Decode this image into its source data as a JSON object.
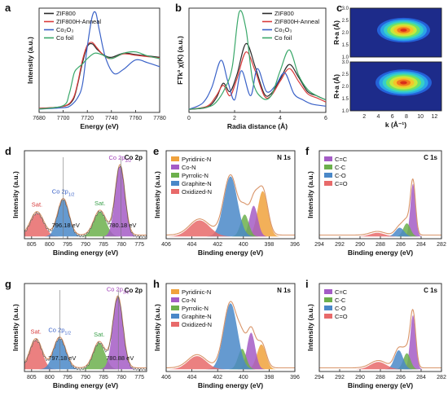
{
  "chart_data": [
    {
      "id": "a",
      "type": "line",
      "letter": "a",
      "xlabel": "Energy (eV)",
      "ylabel": "Intensity (a.u.)",
      "xlim": [
        7680,
        7780
      ],
      "ylim": [
        0,
        1.55
      ],
      "xticks": [
        "7680",
        "7700",
        "7720",
        "7740",
        "7760",
        "7780"
      ],
      "legend_position": "top-left",
      "series": [
        {
          "name": "ZIF800",
          "color": "#2a2a2a",
          "x": [
            7680,
            7700,
            7708,
            7712,
            7716,
            7720,
            7724,
            7728,
            7734,
            7740,
            7750,
            7760,
            7770,
            7780
          ],
          "y": [
            0.06,
            0.09,
            0.18,
            0.42,
            0.74,
            0.98,
            1.02,
            0.94,
            0.85,
            0.82,
            0.88,
            0.86,
            0.84,
            0.82
          ]
        },
        {
          "name": "ZIF800H-Anneal",
          "color": "#d83a3a",
          "x": [
            7680,
            7700,
            7708,
            7712,
            7716,
            7720,
            7724,
            7728,
            7734,
            7740,
            7750,
            7760,
            7770,
            7780
          ],
          "y": [
            0.06,
            0.09,
            0.2,
            0.44,
            0.78,
            1.0,
            1.04,
            0.96,
            0.84,
            0.8,
            0.87,
            0.85,
            0.83,
            0.81
          ]
        },
        {
          "name": "Co₂O₃",
          "color": "#3a62c8",
          "x": [
            7680,
            7700,
            7706,
            7712,
            7716,
            7720,
            7724,
            7727,
            7730,
            7735,
            7742,
            7750,
            7760,
            7770,
            7780
          ],
          "y": [
            0.05,
            0.07,
            0.1,
            0.22,
            0.42,
            0.98,
            1.42,
            1.48,
            1.22,
            0.82,
            0.58,
            0.64,
            0.78,
            0.74,
            0.68
          ]
        },
        {
          "name": "Co foil",
          "color": "#3aa86a",
          "x": [
            7680,
            7700,
            7705,
            7709,
            7712,
            7716,
            7720,
            7726,
            7732,
            7740,
            7750,
            7760,
            7770,
            7780
          ],
          "y": [
            0.05,
            0.1,
            0.28,
            0.58,
            0.66,
            0.72,
            0.8,
            0.88,
            0.86,
            0.8,
            0.88,
            0.9,
            0.84,
            0.8
          ]
        }
      ]
    },
    {
      "id": "b",
      "type": "line",
      "letter": "b",
      "xlabel": "Radia distance (Å)",
      "ylabel": "FTk³ χ(K) (a.u.)",
      "xlim": [
        0,
        6
      ],
      "ylim": [
        0,
        10
      ],
      "xticks": [
        "0",
        "2",
        "4",
        "6"
      ],
      "legend_position": "top-right",
      "series": [
        {
          "name": "ZIF800",
          "color": "#2a2a2a",
          "x": [
            0,
            0.8,
            1.2,
            1.5,
            1.8,
            2.1,
            2.5,
            2.9,
            3.3,
            3.6,
            4.0,
            4.4,
            4.8,
            5.2,
            5.6,
            6.0
          ],
          "y": [
            0.3,
            0.5,
            1.4,
            2.8,
            2.0,
            3.6,
            6.6,
            4.4,
            1.8,
            1.8,
            3.2,
            4.6,
            3.4,
            2.0,
            1.6,
            1.2
          ]
        },
        {
          "name": "ZIF800H-Anneal",
          "color": "#d83a3a",
          "x": [
            0,
            0.8,
            1.2,
            1.5,
            1.8,
            2.1,
            2.5,
            2.9,
            3.3,
            3.6,
            4.0,
            4.4,
            4.8,
            5.2,
            5.6,
            6.0
          ],
          "y": [
            0.3,
            0.6,
            1.6,
            2.6,
            1.6,
            3.2,
            5.8,
            4.0,
            1.6,
            1.6,
            3.0,
            4.2,
            3.0,
            1.8,
            1.4,
            1.0
          ]
        },
        {
          "name": "Co₂O₃",
          "color": "#3a62c8",
          "x": [
            0,
            0.6,
            1.0,
            1.4,
            1.7,
            2.0,
            2.3,
            2.7,
            3.0,
            3.4,
            3.8,
            4.2,
            4.6,
            5.0,
            5.4,
            6.0
          ],
          "y": [
            0.3,
            0.9,
            2.4,
            5.0,
            3.0,
            1.2,
            4.0,
            1.6,
            4.2,
            2.0,
            2.6,
            3.8,
            1.8,
            1.2,
            0.8,
            0.6
          ]
        },
        {
          "name": "Co foil",
          "color": "#3aa86a",
          "x": [
            0,
            0.8,
            1.2,
            1.6,
            1.9,
            2.2,
            2.5,
            2.8,
            3.2,
            3.6,
            4.0,
            4.4,
            4.8,
            5.2,
            5.6,
            6.0
          ],
          "y": [
            0.3,
            0.5,
            1.0,
            2.4,
            4.4,
            9.6,
            8.0,
            3.0,
            1.4,
            1.6,
            4.0,
            6.0,
            3.6,
            2.2,
            1.6,
            1.2
          ]
        }
      ]
    },
    {
      "id": "c",
      "type": "heatmap",
      "letter": "c",
      "xlabel": "k (Å⁻¹)",
      "ylabel": "R+a (Å)",
      "xlim": [
        0,
        13
      ],
      "ylim": [
        1.0,
        3.0
      ],
      "xticks": [
        "2",
        "4",
        "6",
        "8",
        "10",
        "12"
      ],
      "yticks": [
        "1.0",
        "1.5",
        "2.0",
        "2.5",
        "3.0"
      ],
      "maps": [
        {
          "center_k": 7.6,
          "center_r": 2.1,
          "spread_k": 3.4,
          "spread_r": 0.42
        },
        {
          "center_k": 7.6,
          "center_r": 2.15,
          "spread_k": 3.6,
          "spread_r": 0.45
        }
      ]
    },
    {
      "id": "d",
      "type": "area",
      "letter": "d",
      "corner_label": "Co 2p",
      "xlabel": "Binding energy (eV)",
      "ylabel": "Intensity (a.u.)",
      "xlim": [
        807,
        773
      ],
      "ylim": [
        0,
        1.2
      ],
      "xticks": [
        "805",
        "800",
        "795",
        "790",
        "785",
        "780",
        "775"
      ],
      "components": [
        {
          "label": "Sat.",
          "center": 803.5,
          "height": 0.32,
          "width": 2.6,
          "color": "#e86a6a"
        },
        {
          "label": "Co 2p1/2",
          "center": 796.2,
          "height": 0.5,
          "width": 2.2,
          "color": "#4a88c8"
        },
        {
          "label": "Sat.",
          "center": 786.0,
          "height": 0.34,
          "width": 2.4,
          "color": "#6cb04c"
        },
        {
          "label": "Co 2p3/2",
          "center": 780.4,
          "height": 0.96,
          "width": 1.9,
          "color": "#a45cc6"
        }
      ],
      "annotations": [
        {
          "text": "796.18 eV",
          "x": 796.18,
          "color": "#111"
        },
        {
          "text": "780.18 eV",
          "x": 780.18,
          "color": "#111"
        }
      ],
      "label_texts": [
        {
          "text": "Sat.",
          "color": "#d63a3a"
        },
        {
          "text": "Co 2p",
          "sub": "1/2",
          "color": "#3a62c8"
        },
        {
          "text": "Sat.",
          "color": "#3aa04a"
        },
        {
          "text": "Co 2p",
          "sub": "3/2",
          "color": "#a040b8"
        }
      ]
    },
    {
      "id": "e",
      "type": "area",
      "letter": "e",
      "corner_label": "N 1s",
      "xlabel": "Binding energy (eV)",
      "ylabel": "Intensity (a.u.)",
      "xlim": [
        406,
        396
      ],
      "ylim": [
        0,
        1.2
      ],
      "xticks": [
        "406",
        "404",
        "402",
        "400",
        "398",
        "396"
      ],
      "legend": [
        {
          "name": "Pyridinic-N",
          "color": "#f0a23c"
        },
        {
          "name": "Co-N",
          "color": "#a45cc6"
        },
        {
          "name": "Pyrrolic-N",
          "color": "#6cb04c"
        },
        {
          "name": "Graphite-N",
          "color": "#4a88c8"
        },
        {
          "name": "Oxidized-N",
          "color": "#e86a6a"
        }
      ],
      "components": [
        {
          "center": 398.5,
          "height": 0.62,
          "width": 0.55,
          "color": "#f0a23c"
        },
        {
          "center": 399.2,
          "height": 0.42,
          "width": 0.45,
          "color": "#a45cc6"
        },
        {
          "center": 399.9,
          "height": 0.3,
          "width": 0.45,
          "color": "#6cb04c"
        },
        {
          "center": 401.0,
          "height": 0.82,
          "width": 0.75,
          "color": "#4a88c8"
        },
        {
          "center": 403.4,
          "height": 0.22,
          "width": 1.1,
          "color": "#e86a6a"
        }
      ]
    },
    {
      "id": "f",
      "type": "area",
      "letter": "f",
      "corner_label": "C 1s",
      "xlabel": "Binding energy (eV)",
      "ylabel": "Intensity (a.u.)",
      "xlim": [
        294,
        282
      ],
      "ylim": [
        0,
        1.2
      ],
      "xticks": [
        "294",
        "292",
        "290",
        "288",
        "286",
        "284",
        "282"
      ],
      "legend": [
        {
          "name": "C=C",
          "color": "#a45cc6"
        },
        {
          "name": "C-C",
          "color": "#6cb04c"
        },
        {
          "name": "C-O",
          "color": "#4a88c8"
        },
        {
          "name": "C=O",
          "color": "#e86a6a"
        }
      ],
      "components": [
        {
          "center": 284.8,
          "height": 0.72,
          "width": 0.35,
          "color": "#a45cc6"
        },
        {
          "center": 285.4,
          "height": 0.18,
          "width": 0.5,
          "color": "#6cb04c"
        },
        {
          "center": 286.1,
          "height": 0.12,
          "width": 0.6,
          "color": "#4a88c8"
        },
        {
          "center": 288.3,
          "height": 0.05,
          "width": 1.0,
          "color": "#e86a6a"
        }
      ]
    },
    {
      "id": "g",
      "type": "area",
      "letter": "g",
      "corner_label": "Co 2p",
      "xlabel": "Binding energy (eV)",
      "ylabel": "Intensity (a.u.)",
      "xlim": [
        807,
        773
      ],
      "ylim": [
        0,
        1.2
      ],
      "xticks": [
        "805",
        "800",
        "795",
        "790",
        "785",
        "780",
        "775"
      ],
      "components": [
        {
          "label": "Sat.",
          "center": 803.8,
          "height": 0.4,
          "width": 2.4,
          "color": "#e86a6a"
        },
        {
          "label": "Co 2p1/2",
          "center": 797.2,
          "height": 0.42,
          "width": 2.4,
          "color": "#4a88c8"
        },
        {
          "label": "Sat.",
          "center": 786.2,
          "height": 0.36,
          "width": 2.3,
          "color": "#6cb04c"
        },
        {
          "label": "Co 2p3/2",
          "center": 781.0,
          "height": 0.98,
          "width": 2.0,
          "color": "#a45cc6"
        }
      ],
      "annotations": [
        {
          "text": "797.18 eV",
          "x": 797.18,
          "color": "#111"
        },
        {
          "text": "780.88 eV",
          "x": 780.88,
          "color": "#111"
        }
      ],
      "label_texts": [
        {
          "text": "Sat.",
          "color": "#d63a3a"
        },
        {
          "text": "Co 2p",
          "sub": "1/2",
          "color": "#3a62c8"
        },
        {
          "text": "Sat.",
          "color": "#3aa04a"
        },
        {
          "text": "Co 2p",
          "sub": "3/2",
          "color": "#a040b8"
        }
      ]
    },
    {
      "id": "h",
      "type": "area",
      "letter": "h",
      "corner_label": "N 1s",
      "xlabel": "Binding energy (eV)",
      "ylabel": "Intensity (a.u.)",
      "xlim": [
        406,
        396
      ],
      "ylim": [
        0,
        1.2
      ],
      "xticks": [
        "406",
        "404",
        "402",
        "400",
        "398",
        "396"
      ],
      "legend": [
        {
          "name": "Pyridinic-N",
          "color": "#f0a23c"
        },
        {
          "name": "Co-N",
          "color": "#a45cc6"
        },
        {
          "name": "Pyrrolic-N",
          "color": "#6cb04c"
        },
        {
          "name": "Graphite-N",
          "color": "#4a88c8"
        },
        {
          "name": "Oxidized-N",
          "color": "#e86a6a"
        }
      ],
      "components": [
        {
          "center": 398.6,
          "height": 0.34,
          "width": 0.5,
          "color": "#f0a23c"
        },
        {
          "center": 399.4,
          "height": 0.5,
          "width": 0.45,
          "color": "#a45cc6"
        },
        {
          "center": 400.1,
          "height": 0.28,
          "width": 0.45,
          "color": "#6cb04c"
        },
        {
          "center": 401.0,
          "height": 0.9,
          "width": 0.75,
          "color": "#4a88c8"
        },
        {
          "center": 403.6,
          "height": 0.18,
          "width": 1.0,
          "color": "#e86a6a"
        }
      ]
    },
    {
      "id": "i",
      "type": "area",
      "letter": "i",
      "corner_label": "C 1s",
      "xlabel": "Binding energy (eV)",
      "ylabel": "Intensity (a.u.)",
      "xlim": [
        294,
        282
      ],
      "ylim": [
        0,
        1.2
      ],
      "xticks": [
        "294",
        "292",
        "290",
        "288",
        "286",
        "284",
        "282"
      ],
      "legend": [
        {
          "name": "C=C",
          "color": "#a45cc6"
        },
        {
          "name": "C-C",
          "color": "#6cb04c"
        },
        {
          "name": "C-O",
          "color": "#4a88c8"
        },
        {
          "name": "C=O",
          "color": "#e86a6a"
        }
      ],
      "components": [
        {
          "center": 284.8,
          "height": 0.74,
          "width": 0.38,
          "color": "#a45cc6"
        },
        {
          "center": 285.4,
          "height": 0.22,
          "width": 0.5,
          "color": "#6cb04c"
        },
        {
          "center": 286.2,
          "height": 0.26,
          "width": 0.6,
          "color": "#4a88c8"
        },
        {
          "center": 288.2,
          "height": 0.1,
          "width": 1.1,
          "color": "#e86a6a"
        }
      ]
    }
  ]
}
